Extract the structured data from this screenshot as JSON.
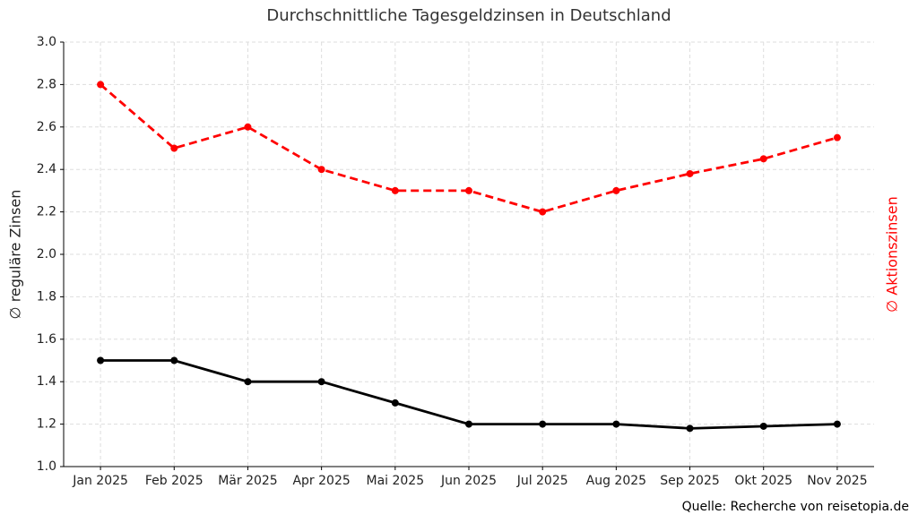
{
  "chart_data": {
    "type": "line",
    "title": "Durchschnittliche Tagesgeldzinsen in Deutschland",
    "y_label": "∅ reguläre Zinsen",
    "y2_label": "∅ Aktionszinsen",
    "y2_label_color": "#ff0000",
    "source": "Quelle: Recherche von reisetopia.de",
    "categories": [
      "Jan 2025",
      "Feb 2025",
      "Mär 2025",
      "Apr 2025",
      "Mai 2025",
      "Jun 2025",
      "Jul 2025",
      "Aug 2025",
      "Sep 2025",
      "Okt 2025",
      "Nov 2025"
    ],
    "series": [
      {
        "color": "#000000",
        "dashed": false,
        "values": [
          1.5,
          1.5,
          1.4,
          1.4,
          1.3,
          1.2,
          1.2,
          1.2,
          1.18,
          1.19,
          1.2
        ]
      },
      {
        "color": "#ff0000",
        "dashed": true,
        "values": [
          2.8,
          2.5,
          2.6,
          2.4,
          2.3,
          2.3,
          2.2,
          2.3,
          2.38,
          2.45,
          2.55
        ]
      }
    ],
    "ylim": [
      1,
      3
    ],
    "yticks": [
      {
        "value": 1,
        "label": "1.0"
      },
      1.2,
      1.4,
      1.6,
      1.8,
      {
        "value": 2,
        "label": "2.0"
      },
      2.2,
      2.4,
      2.6,
      2.8,
      {
        "value": 3,
        "label": "3.0"
      }
    ],
    "grid": true
  }
}
